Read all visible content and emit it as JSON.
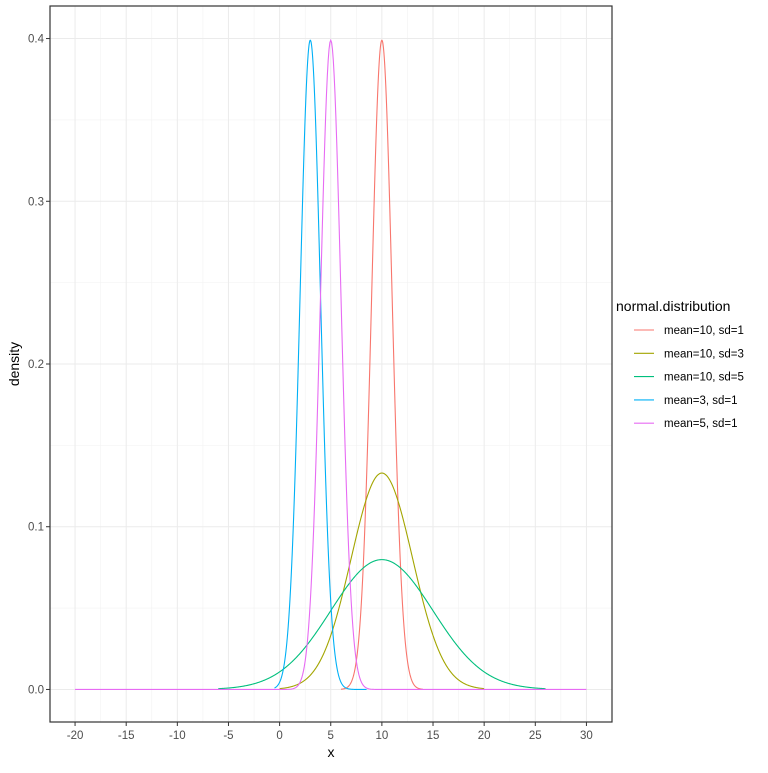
{
  "chart_data": {
    "type": "line",
    "title": "",
    "xlabel": "x",
    "ylabel": "density",
    "xlim": [
      -22.45,
      32.5
    ],
    "ylim": [
      -0.02,
      0.42
    ],
    "x_ticks": [
      -20,
      -15,
      -10,
      -5,
      0,
      5,
      10,
      15,
      20,
      25,
      30
    ],
    "x_tick_labels": [
      "-20",
      "-15",
      "-10",
      "-5",
      "0",
      "5",
      "10",
      "15",
      "20",
      "25",
      "30"
    ],
    "y_ticks": [
      0,
      0.1,
      0.2,
      0.3,
      0.4
    ],
    "y_tick_labels": [
      "0.0",
      "0.1",
      "0.2",
      "0.3",
      "0.4"
    ],
    "grid": true,
    "legend": {
      "title": "normal.distribution",
      "placement": "right"
    },
    "series": [
      {
        "name": "mean=10, sd=1",
        "mean": 10,
        "sd": 1,
        "x_range": [
          6,
          14
        ],
        "color": "#F8766D"
      },
      {
        "name": "mean=10, sd=3",
        "mean": 10,
        "sd": 3,
        "x_range": [
          0,
          20
        ],
        "color": "#A3A500"
      },
      {
        "name": "mean=10, sd=5",
        "mean": 10,
        "sd": 5,
        "x_range": [
          -6,
          26
        ],
        "color": "#00BF7D"
      },
      {
        "name": "mean=3, sd=1",
        "mean": 3,
        "sd": 1,
        "x_range": [
          -0.5,
          8.5
        ],
        "color": "#00B0F6"
      },
      {
        "name": "mean=5, sd=1",
        "mean": 5,
        "sd": 1,
        "x_range": [
          -20,
          30
        ],
        "color": "#E76BF3"
      }
    ]
  }
}
